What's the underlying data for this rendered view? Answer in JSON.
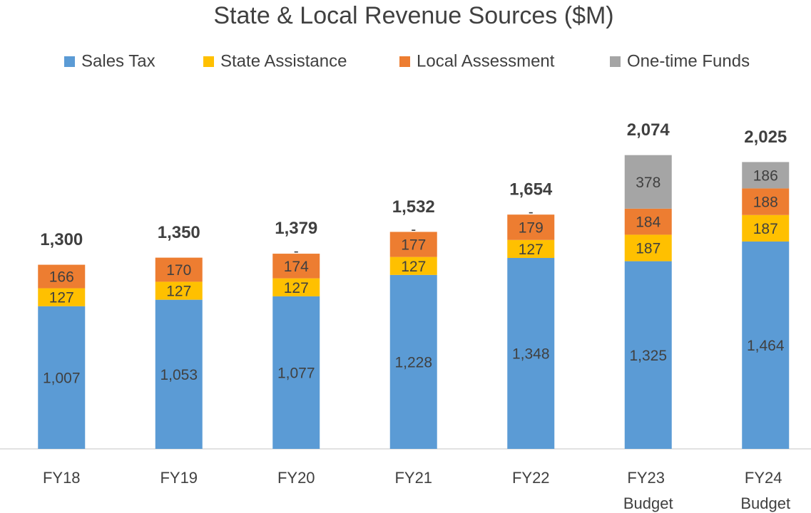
{
  "chart_data": {
    "type": "stacked_bar",
    "title": "State & Local Revenue Sources ($M)",
    "categories": [
      "FY18",
      "FY19",
      "FY20",
      "FY21",
      "FY22",
      "FY23 Budget",
      "FY24 Budget"
    ],
    "series": [
      {
        "name": "Sales Tax",
        "color": "#5b9bd5",
        "values": [
          1007,
          1053,
          1077,
          1228,
          1348,
          1325,
          1464
        ],
        "value_labels": [
          "1,007",
          "1,053",
          "1,077",
          "1,228",
          "1,348",
          "1,325",
          "1,464"
        ]
      },
      {
        "name": "State Assistance",
        "color": "#ffc000",
        "values": [
          127,
          127,
          127,
          127,
          127,
          187,
          187
        ]
      },
      {
        "name": "Local Assessment",
        "color": "#ed7d31",
        "values": [
          166,
          170,
          174,
          177,
          179,
          184,
          188
        ]
      },
      {
        "name": "One-time Funds",
        "color": "#a5a5a5",
        "values": [
          null,
          null,
          0,
          0,
          0,
          378,
          186
        ],
        "value_labels": [
          null,
          null,
          "-",
          "-",
          "-",
          "378",
          "186"
        ]
      }
    ],
    "totals": [
      1300,
      1350,
      1379,
      1532,
      1654,
      2074,
      2025
    ],
    "total_labels": [
      "1,300",
      "1,350",
      "1,379",
      "1,532",
      "1,654",
      "2,074",
      "2,025"
    ],
    "ylim": [
      0,
      2500
    ],
    "legend": "top"
  }
}
